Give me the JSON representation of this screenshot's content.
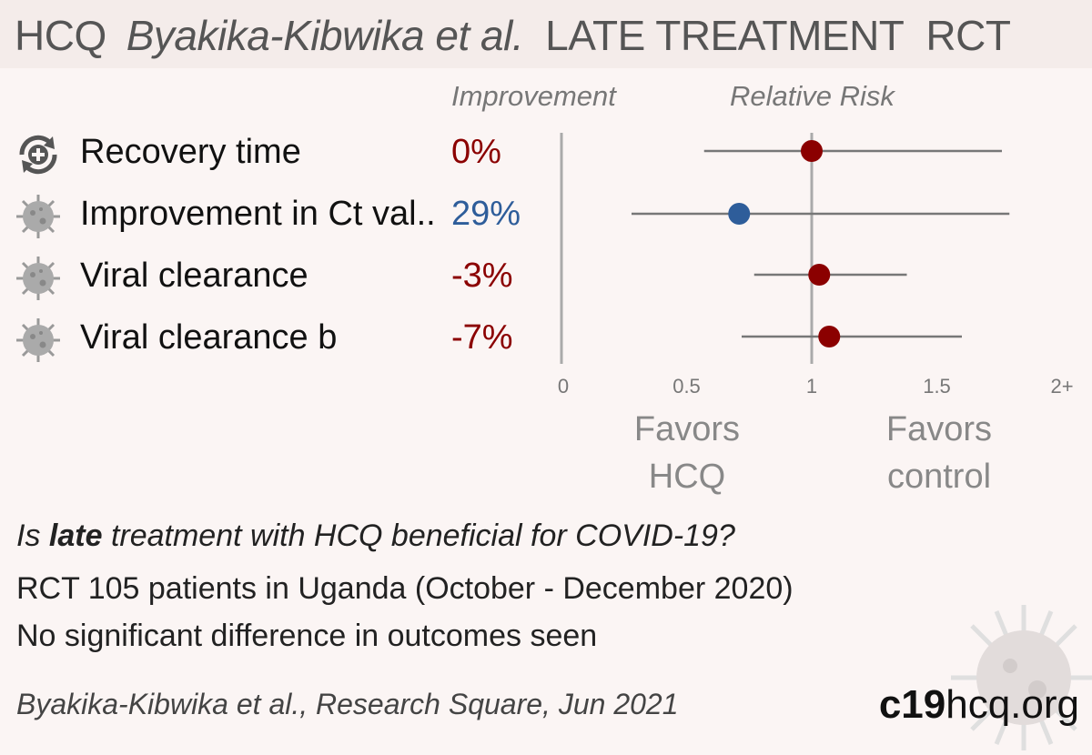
{
  "header": {
    "drug": "HCQ",
    "authors": "Byakika-Kibwika et al.",
    "stage": "LATE TREATMENT",
    "design": "RCT"
  },
  "columns": {
    "improvement": "Improvement",
    "relative_risk": "Relative Risk"
  },
  "outcomes": [
    {
      "label": "Recovery time",
      "improvement": "0%",
      "icon": "recovery-icon",
      "color": "#8b0000"
    },
    {
      "label": "Improvement in Ct val..",
      "improvement": "29%",
      "icon": "virus-icon",
      "color": "#2e5d9a"
    },
    {
      "label": "Viral clearance",
      "improvement": "-3%",
      "icon": "virus-icon",
      "color": "#8b0000"
    },
    {
      "label": "Viral clearance b",
      "improvement": "-7%",
      "icon": "virus-icon",
      "color": "#8b0000"
    }
  ],
  "chart_data": {
    "type": "forest",
    "x_ticks": [
      "0",
      "0.5",
      "1",
      "1.5",
      "2+"
    ],
    "xlim": [
      0,
      2
    ],
    "reference_line": 1,
    "points": [
      {
        "rr": 1.0,
        "ci_low": 0.57,
        "ci_high": 1.76,
        "color": "#8b0000"
      },
      {
        "rr": 0.71,
        "ci_low": 0.28,
        "ci_high": 1.79,
        "color": "#2e5d9a"
      },
      {
        "rr": 1.03,
        "ci_low": 0.77,
        "ci_high": 1.38,
        "color": "#8b0000"
      },
      {
        "rr": 1.07,
        "ci_low": 0.72,
        "ci_high": 1.6,
        "color": "#8b0000"
      }
    ],
    "favors_left": [
      "Favors",
      "HCQ"
    ],
    "favors_right": [
      "Favors",
      "control"
    ]
  },
  "summary": {
    "question_pre": "Is ",
    "question_bold": "late",
    "question_post": " treatment with HCQ beneficial for COVID-19?",
    "line2": "RCT 105 patients in Uganda (October - December 2020)",
    "line3": "No significant difference in outcomes seen"
  },
  "footer": {
    "citation": "Byakika-Kibwika et al., Research Square, Jun 2021",
    "brand_bold": "c19",
    "brand_rest": "hcq.org"
  }
}
